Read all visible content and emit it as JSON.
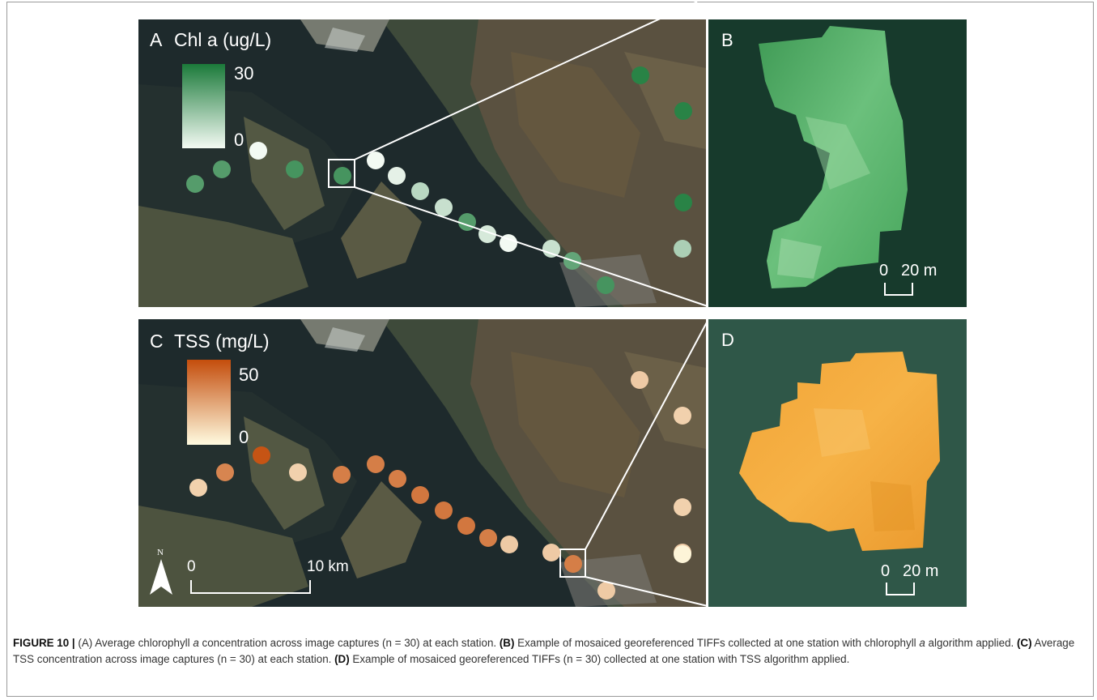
{
  "panels": {
    "a": {
      "letter": "A",
      "title": "Chl a (ug/L)",
      "legend": {
        "max": "30",
        "min": "0",
        "color_high": "#1b7a3a",
        "color_low": "#f3faf3"
      },
      "stations": [
        {
          "v": 22
        },
        {
          "v": 22
        },
        {
          "v": 0
        },
        {
          "v": 24
        },
        {
          "v": 24
        },
        {
          "v": 0
        },
        {
          "v": 2
        },
        {
          "v": 8
        },
        {
          "v": 6
        },
        {
          "v": 22
        },
        {
          "v": 4
        },
        {
          "v": 0
        },
        {
          "v": 6
        },
        {
          "v": 20
        },
        {
          "v": 24
        },
        {
          "v": 28
        },
        {
          "v": 28
        },
        {
          "v": 28
        },
        {
          "v": 10
        }
      ]
    },
    "b": {
      "letter": "B",
      "scale": {
        "start": "0",
        "end": "20 m"
      }
    },
    "c": {
      "letter": "C",
      "title": "TSS (mg/L)",
      "legend": {
        "max": "50",
        "min": "0",
        "color_high": "#c44d0c",
        "color_low": "#fffbe0"
      },
      "scale": {
        "start": "0",
        "end": "10 km"
      },
      "north": "N",
      "stations": [
        {
          "v": 12
        },
        {
          "v": 34
        },
        {
          "v": 48
        },
        {
          "v": 12
        },
        {
          "v": 36
        },
        {
          "v": 36
        },
        {
          "v": 36
        },
        {
          "v": 38
        },
        {
          "v": 38
        },
        {
          "v": 38
        },
        {
          "v": 36
        },
        {
          "v": 14
        },
        {
          "v": 14
        },
        {
          "v": 36
        },
        {
          "v": 14
        },
        {
          "v": 14
        },
        {
          "v": 12
        },
        {
          "v": 12
        },
        {
          "v": 14
        },
        {
          "v": 2
        }
      ]
    },
    "d": {
      "letter": "D",
      "scale": {
        "start": "0",
        "end": "20 m"
      }
    }
  },
  "caption": {
    "figure_label": "FIGURE 10 |",
    "parts": [
      {
        "bold": false,
        "text": " ("
      },
      {
        "bold": false,
        "text": "A) Average chlorophyll "
      },
      {
        "bold": false,
        "italic": true,
        "text": "a"
      },
      {
        "bold": false,
        "text": " concentration across image captures (n = 30) at each station. "
      },
      {
        "bold": true,
        "text": "(B)"
      },
      {
        "bold": false,
        "text": " Example of mosaiced georeferenced TIFFs collected at one station with chlorophyll "
      },
      {
        "bold": false,
        "italic": true,
        "text": "a"
      },
      {
        "bold": false,
        "text": " algorithm applied. "
      },
      {
        "bold": true,
        "text": "(C)"
      },
      {
        "bold": false,
        "text": " Average TSS concentration across image captures (n = 30) at each station. "
      },
      {
        "bold": true,
        "text": "(D)"
      },
      {
        "bold": false,
        "text": " Example of mosaiced georeferenced TIFFs (n = 30) collected at one station with TSS algorithm applied."
      }
    ]
  }
}
